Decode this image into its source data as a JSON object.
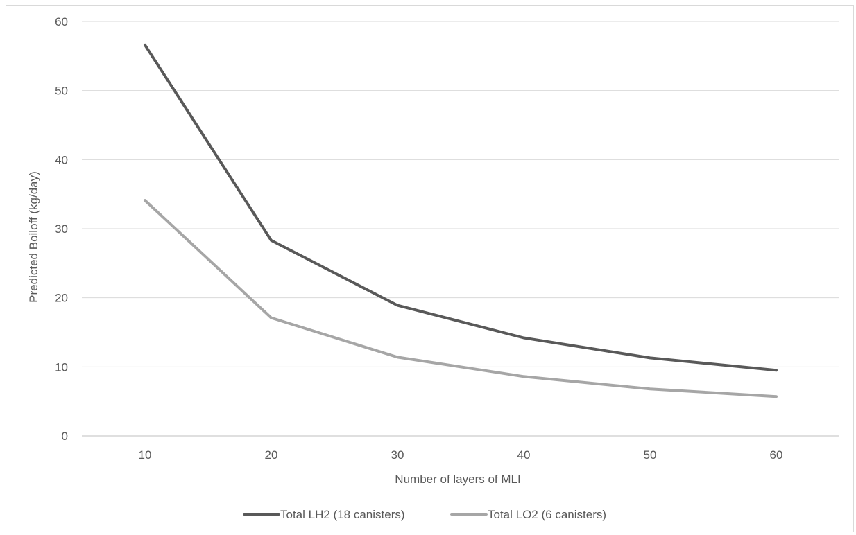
{
  "chart_data": {
    "type": "line",
    "title": "",
    "xlabel": "Number of layers of MLI",
    "ylabel": "Predicted Boiloff (kg/day)",
    "x": [
      10,
      20,
      30,
      40,
      50,
      60
    ],
    "xticks": [
      "10",
      "20",
      "30",
      "40",
      "50",
      "60"
    ],
    "ylim": [
      0,
      60
    ],
    "yticks": [
      "0",
      "10",
      "20",
      "30",
      "40",
      "50",
      "60"
    ],
    "grid": true,
    "legend_position": "bottom",
    "series": [
      {
        "name": "Total LH2 (18 canisters)",
        "color": "#595959",
        "values": [
          56.6,
          28.3,
          18.9,
          14.2,
          11.3,
          9.5
        ]
      },
      {
        "name": "Total LO2 (6 canisters)",
        "color": "#a6a6a6",
        "values": [
          34.1,
          17.1,
          11.4,
          8.6,
          6.8,
          5.7
        ]
      }
    ]
  }
}
